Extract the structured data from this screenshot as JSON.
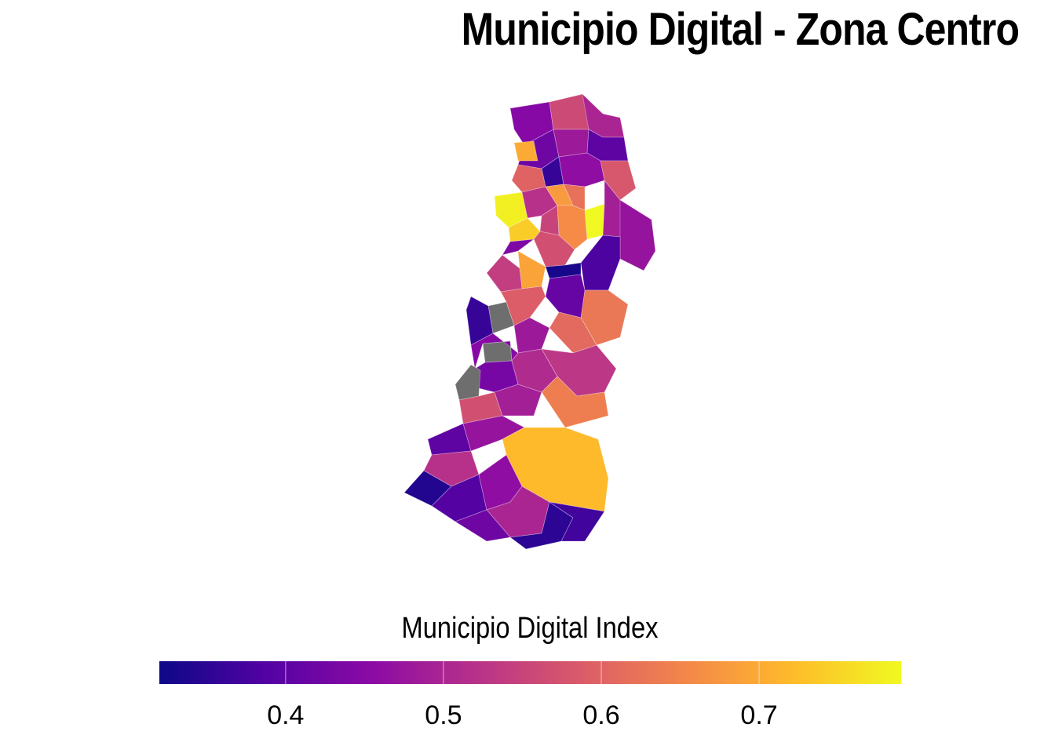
{
  "title": "Municipio Digital - Zona Centro",
  "legend": {
    "title": "Municipio Digital Index",
    "min": 0.32,
    "max": 0.79,
    "ticks": [
      "0.4",
      "0.5",
      "0.6",
      "0.7"
    ],
    "palette": [
      "#0d0887",
      "#5302a3",
      "#8b0aa5",
      "#b83289",
      "#db5c68",
      "#f48849",
      "#febc2a",
      "#f0f921"
    ],
    "missing_color": "#6e6e6e"
  },
  "chart_data": {
    "type": "choropleth",
    "title": "Municipio Digital - Zona Centro",
    "legend_title": "Municipio Digital Index",
    "scale": "plasma",
    "range": [
      0.32,
      0.79
    ],
    "regions": [
      {
        "id": "r01",
        "value": 0.45
      },
      {
        "id": "r02",
        "value": 0.56
      },
      {
        "id": "r03",
        "value": 0.5
      },
      {
        "id": "r04",
        "value": 0.42
      },
      {
        "id": "r05",
        "value": 0.7
      },
      {
        "id": "r06",
        "value": 0.48
      },
      {
        "id": "r07",
        "value": 0.4
      },
      {
        "id": "r08",
        "value": 0.58
      },
      {
        "id": "r09",
        "value": 0.36
      },
      {
        "id": "r10",
        "value": 0.46
      },
      {
        "id": "r11",
        "value": 0.6
      },
      {
        "id": "r12",
        "value": 0.78
      },
      {
        "id": "r13",
        "value": 0.74
      },
      {
        "id": "r14",
        "value": 0.52
      },
      {
        "id": "r15",
        "value": 0.68
      },
      {
        "id": "r16",
        "value": 0.62
      },
      {
        "id": "r17",
        "value": 0.79
      },
      {
        "id": "r18",
        "value": 0.49
      },
      {
        "id": "r19",
        "value": 0.66
      },
      {
        "id": "r20",
        "value": 0.55
      },
      {
        "id": "r21",
        "value": 0.47
      },
      {
        "id": "r22",
        "value": 0.57
      },
      {
        "id": "r23",
        "value": 0.69
      },
      {
        "id": "r24",
        "value": 0.33
      },
      {
        "id": "r25",
        "value": 0.44
      },
      {
        "id": "r26",
        "value": 0.38
      },
      {
        "id": "r27",
        "value": 0.54
      },
      {
        "id": "r28",
        "value": 0.63
      },
      {
        "id": "r29",
        "value": 0.41
      },
      {
        "id": "r30",
        "value": null
      },
      {
        "id": "r31",
        "value": 0.36
      },
      {
        "id": "r32",
        "value": 0.59
      },
      {
        "id": "r33",
        "value": 0.48
      },
      {
        "id": "r34",
        "value": 0.61
      },
      {
        "id": "r35",
        "value": null
      },
      {
        "id": "r36",
        "value": 0.45
      },
      {
        "id": "r37",
        "value": 0.53
      },
      {
        "id": "r38",
        "value": 0.43
      },
      {
        "id": "r39",
        "value": 0.51
      },
      {
        "id": "r40",
        "value": null
      },
      {
        "id": "r41",
        "value": 0.57
      },
      {
        "id": "r42",
        "value": 0.49
      },
      {
        "id": "r43",
        "value": 0.64
      },
      {
        "id": "r44",
        "value": 0.4
      },
      {
        "id": "r45",
        "value": 0.47
      },
      {
        "id": "r46",
        "value": 0.72
      },
      {
        "id": "r47",
        "value": 0.52
      },
      {
        "id": "r48",
        "value": 0.34
      },
      {
        "id": "r49",
        "value": 0.39
      },
      {
        "id": "r50",
        "value": 0.46
      },
      {
        "id": "r51",
        "value": 0.5
      },
      {
        "id": "r52",
        "value": 0.42
      },
      {
        "id": "r53",
        "value": 0.35
      },
      {
        "id": "r54",
        "value": 0.37
      }
    ]
  }
}
